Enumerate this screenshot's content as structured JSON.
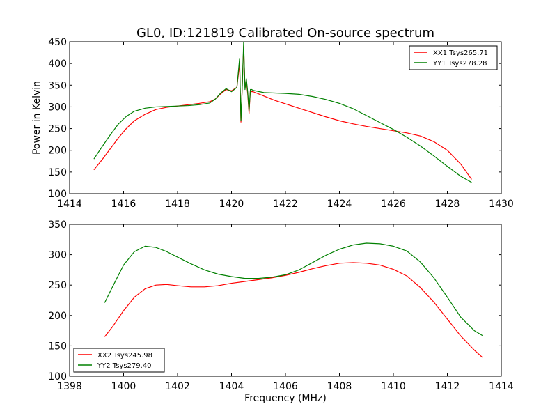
{
  "figure": {
    "title": "GL0, ID:121819 Calibrated On-source spectrum",
    "ylabel": "Power in Kelvin",
    "xlabel": "Frequency (MHz)"
  },
  "colors": {
    "red": "#ff0000",
    "green": "#008000",
    "axis": "#000000"
  },
  "chart_data": [
    {
      "type": "line",
      "xlim": [
        1414,
        1430
      ],
      "ylim": [
        100,
        450
      ],
      "xticks": [
        "1414",
        "1416",
        "1418",
        "1420",
        "1422",
        "1424",
        "1426",
        "1428",
        "1430"
      ],
      "yticks": [
        "100",
        "150",
        "200",
        "250",
        "300",
        "350",
        "400",
        "450"
      ],
      "legend_position": "top-right",
      "series": [
        {
          "name": "XX1 Tsys265.71",
          "color": "#ff0000",
          "x": [
            1414.9,
            1415.2,
            1415.5,
            1415.8,
            1416.1,
            1416.4,
            1416.8,
            1417.2,
            1417.6,
            1418.0,
            1418.4,
            1418.8,
            1419.2,
            1419.4,
            1419.6,
            1419.8,
            1420.0,
            1420.2,
            1420.3,
            1420.35,
            1420.4,
            1420.45,
            1420.5,
            1420.55,
            1420.6,
            1420.65,
            1420.7,
            1420.75,
            1420.8,
            1421.2,
            1421.6,
            1422.0,
            1422.5,
            1423.0,
            1423.5,
            1424.0,
            1424.5,
            1425.0,
            1425.5,
            1426.0,
            1426.5,
            1427.0,
            1427.5,
            1428.0,
            1428.5,
            1428.9
          ],
          "y": [
            155,
            178,
            203,
            228,
            250,
            268,
            283,
            294,
            299,
            302,
            305,
            308,
            312,
            318,
            330,
            340,
            337,
            345,
            400,
            265,
            350,
            440,
            345,
            360,
            330,
            285,
            338,
            335,
            335,
            325,
            315,
            307,
            297,
            287,
            277,
            268,
            261,
            255,
            250,
            245,
            240,
            233,
            220,
            200,
            168,
            133
          ]
        },
        {
          "name": "YY1 Tsys278.28",
          "color": "#008000",
          "x": [
            1414.9,
            1415.2,
            1415.5,
            1415.8,
            1416.1,
            1416.4,
            1416.8,
            1417.2,
            1417.6,
            1418.0,
            1418.4,
            1418.8,
            1419.2,
            1419.4,
            1419.6,
            1419.8,
            1420.0,
            1420.2,
            1420.3,
            1420.35,
            1420.4,
            1420.45,
            1420.5,
            1420.55,
            1420.6,
            1420.65,
            1420.7,
            1420.75,
            1420.8,
            1421.2,
            1421.6,
            1422.0,
            1422.5,
            1423.0,
            1423.5,
            1424.0,
            1424.5,
            1425.0,
            1425.5,
            1426.0,
            1426.5,
            1427.0,
            1427.5,
            1428.0,
            1428.5,
            1428.9
          ],
          "y": [
            180,
            208,
            235,
            260,
            278,
            290,
            297,
            300,
            301,
            302,
            303,
            305,
            309,
            318,
            332,
            342,
            335,
            345,
            412,
            268,
            350,
            450,
            340,
            365,
            335,
            290,
            340,
            340,
            338,
            333,
            332,
            331,
            329,
            324,
            317,
            308,
            296,
            280,
            264,
            248,
            230,
            210,
            187,
            163,
            140,
            126
          ]
        }
      ]
    },
    {
      "type": "line",
      "xlim": [
        1398,
        1414
      ],
      "ylim": [
        100,
        350
      ],
      "xticks": [
        "1398",
        "1400",
        "1402",
        "1404",
        "1406",
        "1408",
        "1410",
        "1412",
        "1414"
      ],
      "yticks": [
        "100",
        "150",
        "200",
        "250",
        "300",
        "350"
      ],
      "legend_position": "bottom-left",
      "series": [
        {
          "name": "XX2 Tsys245.98",
          "color": "#ff0000",
          "x": [
            1399.3,
            1399.6,
            1400.0,
            1400.4,
            1400.8,
            1401.2,
            1401.6,
            1402.0,
            1402.5,
            1403.0,
            1403.5,
            1404.0,
            1404.5,
            1405.0,
            1405.5,
            1406.0,
            1406.5,
            1407.0,
            1407.5,
            1408.0,
            1408.5,
            1409.0,
            1409.5,
            1410.0,
            1410.5,
            1411.0,
            1411.5,
            1412.0,
            1412.5,
            1413.0,
            1413.3
          ],
          "y": [
            165,
            182,
            208,
            230,
            244,
            250,
            251,
            249,
            247,
            247,
            249,
            253,
            256,
            259,
            262,
            266,
            271,
            277,
            282,
            286,
            287,
            286,
            283,
            276,
            265,
            246,
            222,
            194,
            166,
            143,
            131
          ]
        },
        {
          "name": "YY2 Tsys279.40",
          "color": "#008000",
          "x": [
            1399.3,
            1399.6,
            1400.0,
            1400.4,
            1400.8,
            1401.2,
            1401.6,
            1402.0,
            1402.5,
            1403.0,
            1403.5,
            1404.0,
            1404.5,
            1405.0,
            1405.5,
            1406.0,
            1406.5,
            1407.0,
            1407.5,
            1408.0,
            1408.5,
            1409.0,
            1409.5,
            1410.0,
            1410.5,
            1411.0,
            1411.5,
            1412.0,
            1412.5,
            1413.0,
            1413.3
          ],
          "y": [
            221,
            248,
            283,
            305,
            314,
            312,
            305,
            296,
            285,
            275,
            268,
            264,
            261,
            261,
            263,
            267,
            275,
            287,
            299,
            309,
            316,
            319,
            318,
            314,
            306,
            288,
            262,
            230,
            197,
            175,
            167
          ]
        }
      ]
    }
  ]
}
